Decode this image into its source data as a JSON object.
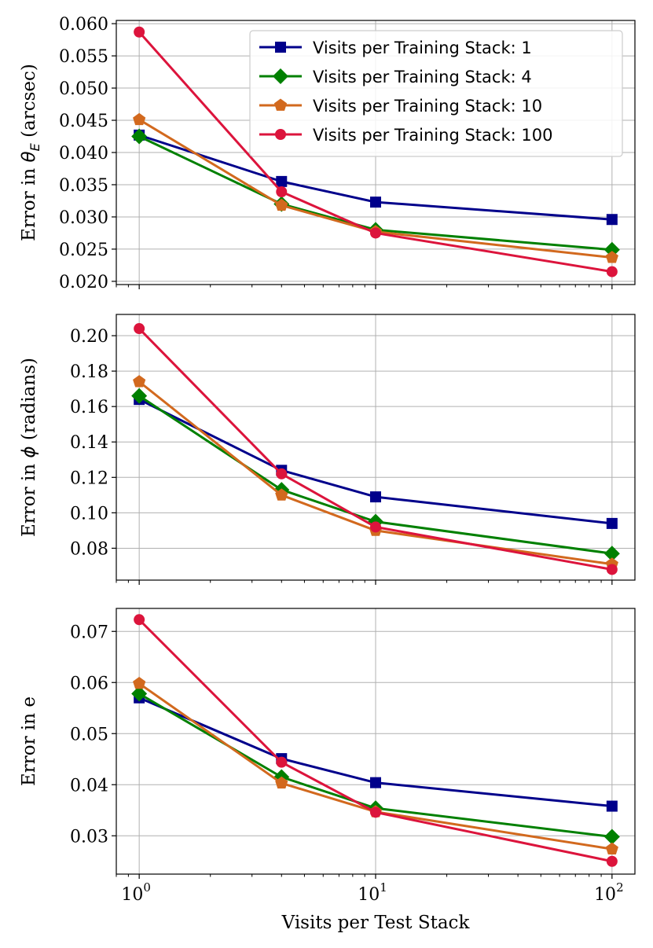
{
  "chart_data": [
    {
      "type": "line",
      "ylabel_prefix": "Error in ",
      "ylabel_symbol": "θ",
      "ylabel_subscript": "E",
      "ylabel_suffix": " (arcsec)",
      "xscale": "log",
      "xlim": [
        0.8,
        125
      ],
      "ylim": [
        0.0195,
        0.0605
      ],
      "yticks": [
        0.02,
        0.025,
        0.03,
        0.035,
        0.04,
        0.045,
        0.05,
        0.055,
        0.06
      ],
      "ytick_labels": [
        "0.020",
        "0.025",
        "0.030",
        "0.035",
        "0.040",
        "0.045",
        "0.050",
        "0.055",
        "0.060"
      ],
      "grid": true,
      "legend_position": "top-right",
      "x": [
        1,
        4,
        10,
        100
      ],
      "series": [
        {
          "name": "Visits per Training Stack: 1",
          "values": [
            0.0427,
            0.0355,
            0.0323,
            0.0296
          ]
        },
        {
          "name": "Visits per Training Stack: 4",
          "values": [
            0.0425,
            0.032,
            0.028,
            0.0249
          ]
        },
        {
          "name": "Visits per Training Stack: 10",
          "values": [
            0.0451,
            0.0318,
            0.0277,
            0.0237
          ]
        },
        {
          "name": "Visits per Training Stack: 100",
          "values": [
            0.0587,
            0.0339,
            0.0275,
            0.0215
          ]
        }
      ]
    },
    {
      "type": "line",
      "ylabel_prefix": "Error in ",
      "ylabel_symbol": "ϕ",
      "ylabel_subscript": "",
      "ylabel_suffix": " (radians)",
      "xscale": "log",
      "xlim": [
        0.8,
        125
      ],
      "ylim": [
        0.062,
        0.212
      ],
      "yticks": [
        0.08,
        0.1,
        0.12,
        0.14,
        0.16,
        0.18,
        0.2
      ],
      "ytick_labels": [
        "0.08",
        "0.10",
        "0.12",
        "0.14",
        "0.16",
        "0.18",
        "0.20"
      ],
      "grid": true,
      "x": [
        1,
        4,
        10,
        100
      ],
      "series": [
        {
          "name": "Visits per Training Stack: 1",
          "values": [
            0.164,
            0.124,
            0.109,
            0.094
          ]
        },
        {
          "name": "Visits per Training Stack: 4",
          "values": [
            0.166,
            0.113,
            0.095,
            0.077
          ]
        },
        {
          "name": "Visits per Training Stack: 10",
          "values": [
            0.174,
            0.11,
            0.09,
            0.071
          ]
        },
        {
          "name": "Visits per Training Stack: 100",
          "values": [
            0.204,
            0.122,
            0.092,
            0.068
          ]
        }
      ]
    },
    {
      "type": "line",
      "ylabel_prefix": "Error in e",
      "ylabel_symbol": "",
      "ylabel_subscript": "",
      "ylabel_suffix": "",
      "xlabel": "Visits per Test Stack",
      "xscale": "log",
      "xlim": [
        0.8,
        125
      ],
      "ylim": [
        0.0225,
        0.0745
      ],
      "yticks": [
        0.03,
        0.04,
        0.05,
        0.06,
        0.07
      ],
      "ytick_labels": [
        "0.03",
        "0.04",
        "0.05",
        "0.06",
        "0.07"
      ],
      "xtick_bases": [
        "10",
        "10",
        "10"
      ],
      "xtick_exponents": [
        "0",
        "1",
        "2"
      ],
      "xtick_values": [
        1,
        10,
        100
      ],
      "grid": true,
      "x": [
        1,
        4,
        10,
        100
      ],
      "series": [
        {
          "name": "Visits per Training Stack: 1",
          "values": [
            0.057,
            0.0451,
            0.0404,
            0.0358
          ]
        },
        {
          "name": "Visits per Training Stack: 4",
          "values": [
            0.0578,
            0.0415,
            0.0354,
            0.0298
          ]
        },
        {
          "name": "Visits per Training Stack: 10",
          "values": [
            0.0598,
            0.0403,
            0.0347,
            0.0274
          ]
        },
        {
          "name": "Visits per Training Stack: 100",
          "values": [
            0.0723,
            0.0444,
            0.0346,
            0.025
          ]
        }
      ]
    }
  ],
  "series_styles": [
    {
      "color": "#00008b",
      "marker": "square"
    },
    {
      "color": "#008000",
      "marker": "diamond"
    },
    {
      "color": "#d2691e",
      "marker": "pentagon"
    },
    {
      "color": "#dc143c",
      "marker": "circle"
    }
  ]
}
